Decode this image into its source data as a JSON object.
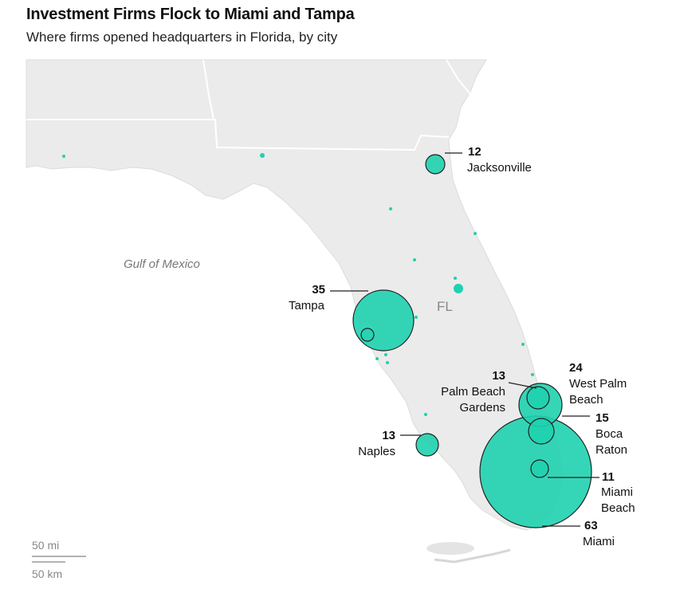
{
  "title": "Investment Firms Flock to Miami and Tampa",
  "subtitle": "Where firms opened headquarters in Florida, by city",
  "water_label": "Gulf of Mexico",
  "state_label": "FL",
  "scale": {
    "miles": "50 mi",
    "km": "50 km"
  },
  "colors": {
    "bubble": "#1fd1b0",
    "land": "#ebebeb",
    "border": "#ffffff",
    "stroke": "#222222"
  },
  "cities": [
    {
      "name": "Jacksonville",
      "count": "12"
    },
    {
      "name": "Tampa",
      "count": "35"
    },
    {
      "name": "Palm Beach Gardens",
      "name_line1": "Palm Beach",
      "name_line2": "Gardens",
      "count": "13"
    },
    {
      "name": "West Palm Beach",
      "name_line1": "West Palm",
      "name_line2": "Beach",
      "count": "24"
    },
    {
      "name": "Boca Raton",
      "name_line1": "Boca",
      "name_line2": "Raton",
      "count": "15"
    },
    {
      "name": "Naples",
      "count": "13"
    },
    {
      "name": "Miami Beach",
      "name_line1": "Miami",
      "name_line2": "Beach",
      "count": "11"
    },
    {
      "name": "Miami",
      "count": "63"
    }
  ]
}
